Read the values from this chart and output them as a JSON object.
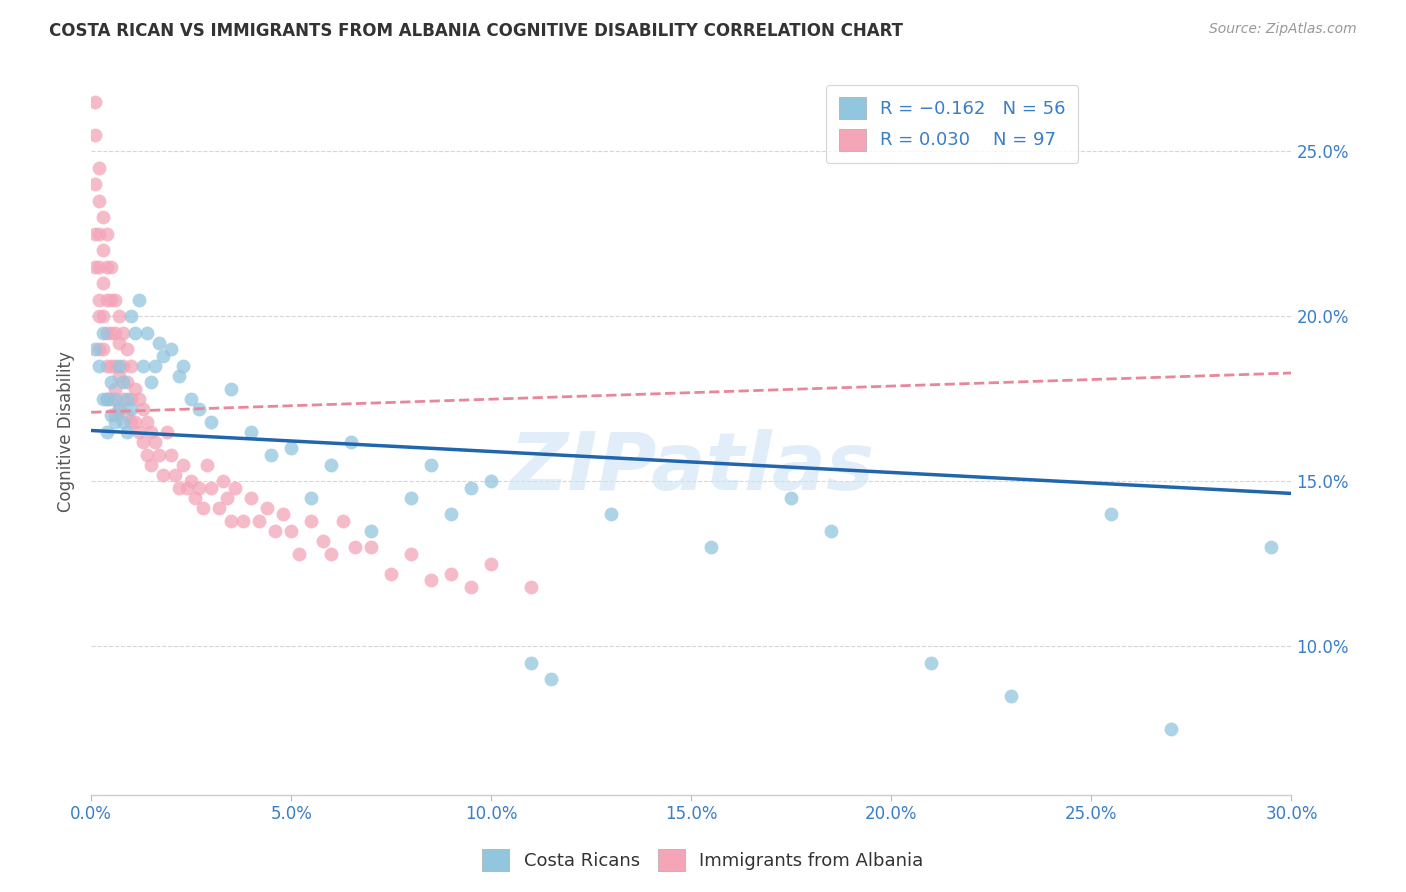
{
  "title": "COSTA RICAN VS IMMIGRANTS FROM ALBANIA COGNITIVE DISABILITY CORRELATION CHART",
  "source": "Source: ZipAtlas.com",
  "ylabel": "Cognitive Disability",
  "bottom_legend1": "Costa Ricans",
  "bottom_legend2": "Immigrants from Albania",
  "color_blue": "#92c5de",
  "color_pink": "#f4a5b8",
  "trend_blue": "#2166ac",
  "trend_pink": "#e8869a",
  "xlim": [
    0.0,
    0.3
  ],
  "ylim": [
    0.055,
    0.275
  ],
  "costa_rican_x": [
    0.001,
    0.002,
    0.003,
    0.003,
    0.004,
    0.004,
    0.005,
    0.005,
    0.006,
    0.006,
    0.007,
    0.007,
    0.008,
    0.008,
    0.009,
    0.009,
    0.01,
    0.01,
    0.011,
    0.012,
    0.013,
    0.014,
    0.015,
    0.016,
    0.017,
    0.018,
    0.02,
    0.022,
    0.023,
    0.025,
    0.027,
    0.03,
    0.035,
    0.04,
    0.045,
    0.05,
    0.055,
    0.06,
    0.065,
    0.07,
    0.08,
    0.085,
    0.09,
    0.095,
    0.1,
    0.11,
    0.115,
    0.13,
    0.155,
    0.175,
    0.185,
    0.21,
    0.23,
    0.255,
    0.27,
    0.295
  ],
  "costa_rican_y": [
    0.19,
    0.185,
    0.175,
    0.195,
    0.175,
    0.165,
    0.18,
    0.17,
    0.175,
    0.168,
    0.185,
    0.172,
    0.18,
    0.168,
    0.175,
    0.165,
    0.2,
    0.172,
    0.195,
    0.205,
    0.185,
    0.195,
    0.18,
    0.185,
    0.192,
    0.188,
    0.19,
    0.182,
    0.185,
    0.175,
    0.172,
    0.168,
    0.178,
    0.165,
    0.158,
    0.16,
    0.145,
    0.155,
    0.162,
    0.135,
    0.145,
    0.155,
    0.14,
    0.148,
    0.15,
    0.095,
    0.09,
    0.14,
    0.13,
    0.145,
    0.135,
    0.095,
    0.085,
    0.14,
    0.075,
    0.13
  ],
  "albania_x": [
    0.001,
    0.001,
    0.001,
    0.001,
    0.001,
    0.002,
    0.002,
    0.002,
    0.002,
    0.002,
    0.002,
    0.002,
    0.003,
    0.003,
    0.003,
    0.003,
    0.003,
    0.004,
    0.004,
    0.004,
    0.004,
    0.004,
    0.004,
    0.005,
    0.005,
    0.005,
    0.005,
    0.005,
    0.006,
    0.006,
    0.006,
    0.006,
    0.006,
    0.007,
    0.007,
    0.007,
    0.007,
    0.008,
    0.008,
    0.008,
    0.009,
    0.009,
    0.009,
    0.01,
    0.01,
    0.01,
    0.011,
    0.011,
    0.012,
    0.012,
    0.013,
    0.013,
    0.014,
    0.014,
    0.015,
    0.015,
    0.016,
    0.017,
    0.018,
    0.019,
    0.02,
    0.021,
    0.022,
    0.023,
    0.024,
    0.025,
    0.026,
    0.027,
    0.028,
    0.029,
    0.03,
    0.032,
    0.033,
    0.034,
    0.035,
    0.036,
    0.038,
    0.04,
    0.042,
    0.044,
    0.046,
    0.048,
    0.05,
    0.052,
    0.055,
    0.058,
    0.06,
    0.063,
    0.066,
    0.07,
    0.075,
    0.08,
    0.085,
    0.09,
    0.095,
    0.1,
    0.11
  ],
  "albania_y": [
    0.265,
    0.255,
    0.24,
    0.225,
    0.215,
    0.245,
    0.235,
    0.225,
    0.215,
    0.205,
    0.2,
    0.19,
    0.23,
    0.22,
    0.21,
    0.2,
    0.19,
    0.225,
    0.215,
    0.205,
    0.195,
    0.185,
    0.175,
    0.215,
    0.205,
    0.195,
    0.185,
    0.175,
    0.205,
    0.195,
    0.185,
    0.178,
    0.17,
    0.2,
    0.192,
    0.182,
    0.172,
    0.195,
    0.185,
    0.175,
    0.19,
    0.18,
    0.17,
    0.185,
    0.175,
    0.168,
    0.178,
    0.168,
    0.175,
    0.165,
    0.172,
    0.162,
    0.168,
    0.158,
    0.165,
    0.155,
    0.162,
    0.158,
    0.152,
    0.165,
    0.158,
    0.152,
    0.148,
    0.155,
    0.148,
    0.15,
    0.145,
    0.148,
    0.142,
    0.155,
    0.148,
    0.142,
    0.15,
    0.145,
    0.138,
    0.148,
    0.138,
    0.145,
    0.138,
    0.142,
    0.135,
    0.14,
    0.135,
    0.128,
    0.138,
    0.132,
    0.128,
    0.138,
    0.13,
    0.13,
    0.122,
    0.128,
    0.12,
    0.122,
    0.118,
    0.125,
    0.118
  ]
}
